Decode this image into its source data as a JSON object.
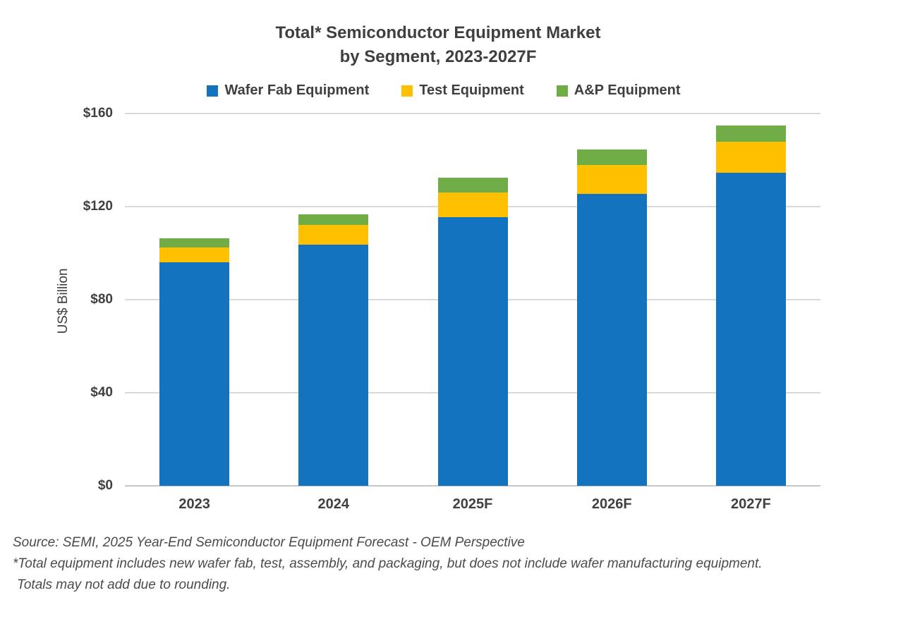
{
  "title": {
    "line1": "Total* Semiconductor Equipment Market",
    "line2": "by Segment, 2023-2027F"
  },
  "chart_data": {
    "type": "bar",
    "stacked": true,
    "title": "Total* Semiconductor Equipment Market by Segment, 2023-2027F",
    "categories": [
      "2023",
      "2024",
      "2025F",
      "2026F",
      "2027F"
    ],
    "series": [
      {
        "name": "Wafer Fab Equipment",
        "color": "#1473BE",
        "values": [
          96.0,
          103.5,
          115.5,
          125.5,
          134.5
        ]
      },
      {
        "name": "Test Equipment",
        "color": "#FFC000",
        "values": [
          6.3,
          8.5,
          10.5,
          12.5,
          13.5
        ]
      },
      {
        "name": "A&P Equipment",
        "color": "#70AD47",
        "values": [
          4.0,
          4.8,
          6.5,
          6.7,
          7.0
        ]
      }
    ],
    "xlabel": "",
    "ylabel": "US$ Billion",
    "ylim": [
      0,
      160
    ],
    "ytick_labels": [
      "$0",
      "$40",
      "$80",
      "$120",
      "$160"
    ],
    "ytick_values": [
      0,
      40,
      80,
      120,
      160
    ],
    "grid": "horizontal",
    "legend_position": "top"
  },
  "footer": {
    "line1": "Source: SEMI, 2025 Year-End Semiconductor Equipment Forecast - OEM Perspective",
    "line2": "*Total equipment includes new wafer fab, test, assembly, and packaging, but does not include wafer manufacturing equipment.",
    "line3": "Totals may not add due to rounding."
  },
  "colors": {
    "wafer_fab": "#1473BE",
    "test": "#FFC000",
    "ap": "#70AD47",
    "text_dark": "#3F3F3F",
    "gridline": "#D9D9D9",
    "footer_text": "#4B4B4B",
    "background": "#FFFFFF"
  }
}
